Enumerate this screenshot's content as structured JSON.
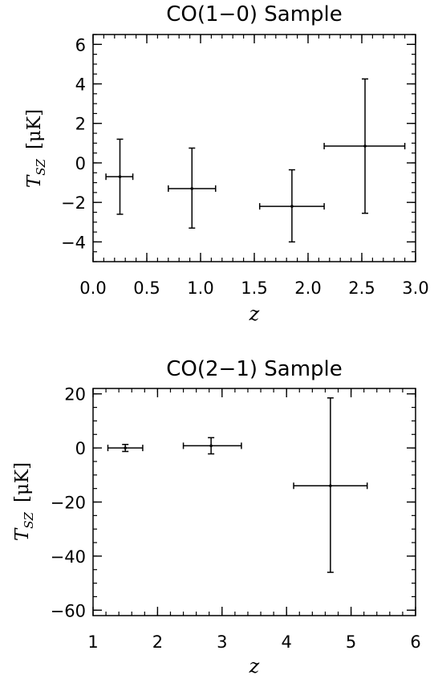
{
  "chart_data": [
    {
      "type": "scatter",
      "title": "CO(1−0) Sample",
      "xlabel": "z",
      "ylabel": {
        "symbol": "T",
        "subscript": "SZ",
        "unit": "[μK]"
      },
      "xlim": [
        0.0,
        3.0
      ],
      "ylim": [
        -5,
        6.5
      ],
      "xticks": [
        0.0,
        0.5,
        1.0,
        1.5,
        2.0,
        2.5,
        3.0
      ],
      "xtick_labels": [
        "0.0",
        "0.5",
        "1.0",
        "1.5",
        "2.0",
        "2.5",
        "3.0"
      ],
      "yticks": [
        -4,
        -2,
        0,
        2,
        4,
        6
      ],
      "ytick_labels": [
        "−4",
        "−2",
        "0",
        "2",
        "4",
        "6"
      ],
      "x_minor_step": 0.1,
      "y_minor_step": 0.5,
      "series": [
        {
          "points": [
            {
              "x": 0.25,
              "y": -0.7,
              "xerr": [
                0.13,
                0.12
              ],
              "yerr": [
                1.9,
                1.9
              ]
            },
            {
              "x": 0.92,
              "y": -1.3,
              "xerr": [
                0.22,
                0.22
              ],
              "yerr": [
                2.0,
                2.05
              ]
            },
            {
              "x": 1.85,
              "y": -2.2,
              "xerr": [
                0.3,
                0.3
              ],
              "yerr": [
                1.8,
                1.85
              ]
            },
            {
              "x": 2.53,
              "y": 0.85,
              "xerr": [
                0.38,
                0.37
              ],
              "yerr": [
                3.4,
                3.4
              ]
            }
          ]
        }
      ]
    },
    {
      "type": "scatter",
      "title": "CO(2−1) Sample",
      "xlabel": "z",
      "ylabel": {
        "symbol": "T",
        "subscript": "SZ",
        "unit": "[μK]"
      },
      "xlim": [
        1,
        6
      ],
      "ylim": [
        -62,
        22
      ],
      "xticks": [
        1,
        2,
        3,
        4,
        5,
        6
      ],
      "xtick_labels": [
        "1",
        "2",
        "3",
        "4",
        "5",
        "6"
      ],
      "yticks": [
        -60,
        -40,
        -20,
        0,
        20
      ],
      "ytick_labels": [
        "−60",
        "−40",
        "−20",
        "0",
        "20"
      ],
      "x_minor_step": 0.2,
      "y_minor_step": 5,
      "series": [
        {
          "points": [
            {
              "x": 1.5,
              "y": 0.0,
              "xerr": [
                0.27,
                0.27
              ],
              "yerr": [
                1.3,
                1.3
              ]
            },
            {
              "x": 2.83,
              "y": 0.8,
              "xerr": [
                0.43,
                0.47
              ],
              "yerr": [
                3.0,
                3.0
              ]
            },
            {
              "x": 4.68,
              "y": -14.0,
              "xerr": [
                0.57,
                0.57
              ],
              "yerr": [
                32.0,
                32.5
              ]
            }
          ]
        }
      ]
    }
  ]
}
